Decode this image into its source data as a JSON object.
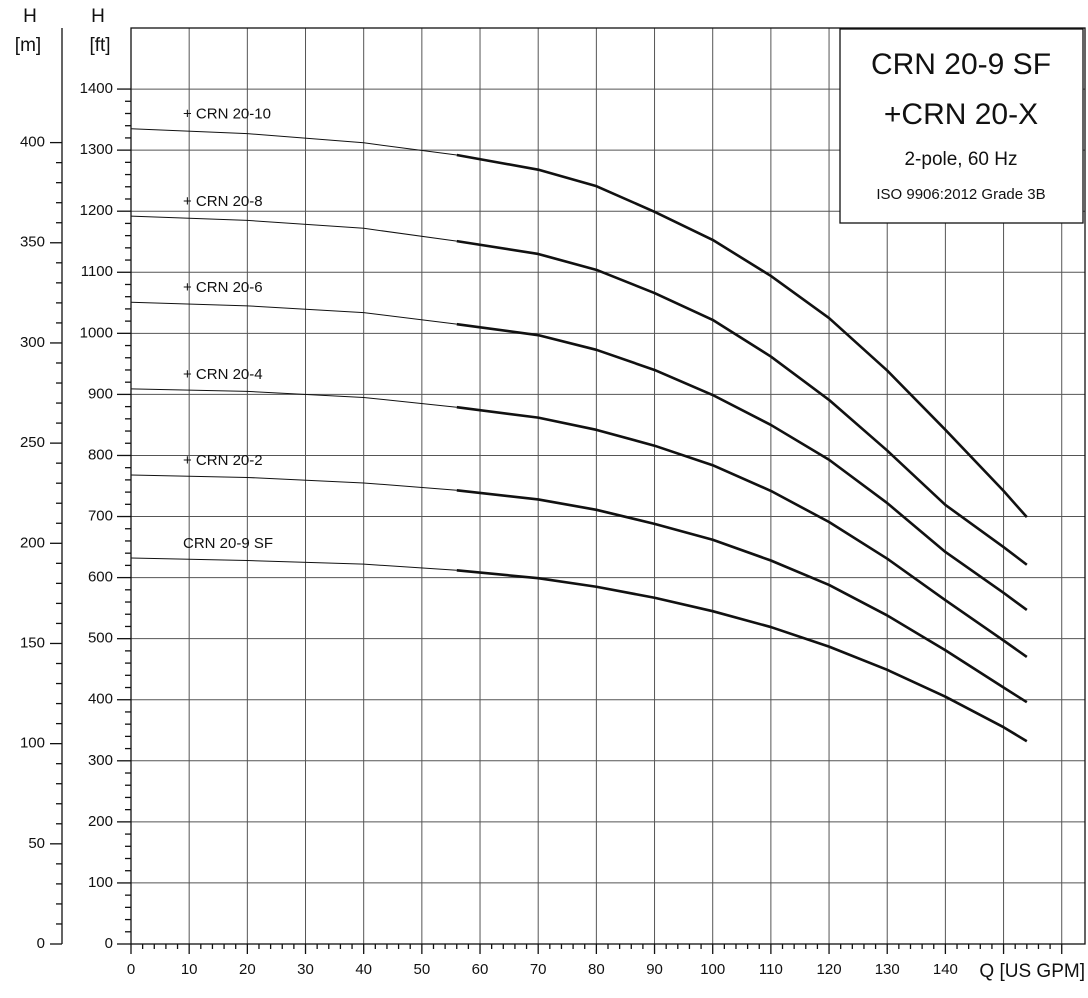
{
  "chart_data": {
    "type": "line",
    "box": {
      "title": "CRN 20-9 SF",
      "subtitle": "+CRN 20-X",
      "line1": "2-pole, 60 Hz",
      "line2": "ISO 9906:2012 Grade 3B"
    },
    "y_label_ft": [
      "H",
      "[ft]"
    ],
    "y_label_m": [
      "H",
      "[m]"
    ],
    "x_label": "Q [US GPM]",
    "x": [
      0,
      20,
      40,
      56,
      70,
      80,
      90,
      100,
      110,
      120,
      130,
      140,
      150,
      154
    ],
    "emphasis_from": 56,
    "xlim": [
      0,
      164
    ],
    "xticks": [
      0,
      10,
      20,
      30,
      40,
      50,
      60,
      70,
      80,
      90,
      100,
      110,
      120,
      130,
      140,
      {
        "value": 150,
        "label": null
      },
      {
        "value": 160,
        "label": null
      }
    ],
    "ylim": [
      0,
      1500
    ],
    "yticks": [
      0,
      100,
      200,
      300,
      400,
      500,
      600,
      700,
      800,
      900,
      1000,
      1100,
      1200,
      1300,
      1400
    ],
    "y2lim": [
      0,
      457.2
    ],
    "y2ticks": [
      0,
      50,
      100,
      150,
      200,
      250,
      300,
      350,
      400
    ],
    "grid": true,
    "series": [
      {
        "name": "+ CRN 20-10",
        "color": "#111",
        "values": [
          1335,
          1327,
          1312,
          1292,
          1268,
          1241,
          1199,
          1153,
          1094,
          1025,
          939,
          842,
          742,
          699
        ]
      },
      {
        "name": "+ CRN 20-8",
        "color": "#111",
        "values": [
          1192,
          1185,
          1172,
          1151,
          1130,
          1104,
          1066,
          1022,
          962,
          891,
          808,
          719,
          650,
          621
        ]
      },
      {
        "name": "+ CRN 20-6",
        "color": "#111",
        "values": [
          1051,
          1045,
          1034,
          1015,
          997,
          973,
          940,
          899,
          850,
          793,
          722,
          642,
          575,
          547
        ]
      },
      {
        "name": "+ CRN 20-4",
        "color": "#111",
        "values": [
          909,
          905,
          895,
          879,
          862,
          842,
          816,
          784,
          742,
          691,
          631,
          563,
          497,
          470
        ]
      },
      {
        "name": "+ CRN 20-2",
        "color": "#111",
        "values": [
          768,
          764,
          755,
          743,
          728,
          711,
          688,
          662,
          628,
          588,
          538,
          481,
          420,
          396
        ]
      },
      {
        "name": "CRN 20-9 SF",
        "color": "#111",
        "values": [
          632,
          628,
          622,
          612,
          599,
          585,
          567,
          545,
          519,
          487,
          449,
          405,
          355,
          332
        ]
      }
    ]
  }
}
